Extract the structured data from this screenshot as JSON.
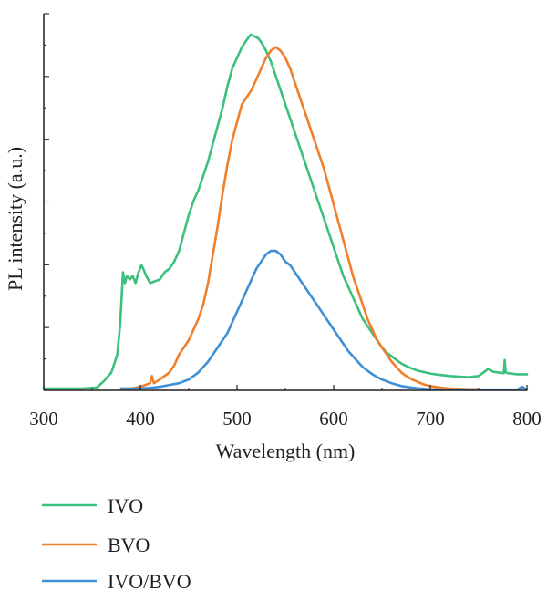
{
  "chart_data": {
    "type": "line",
    "title": "",
    "xlabel": "Wavelength (nm)",
    "ylabel": "PL intensity (a.u.)",
    "xlim": [
      300,
      800
    ],
    "ylim": [
      0,
      1.0
    ],
    "xticks": [
      300,
      400,
      500,
      600,
      700,
      800
    ],
    "xtick_labels": [
      "300",
      "400",
      "500",
      "600",
      "700",
      "800"
    ],
    "y_tick_labels_shown": false,
    "grid": false,
    "legend_position": "bottom-left, below plot",
    "series": [
      {
        "name": "IVO",
        "color": "#3dbf7e",
        "x": [
          300,
          340,
          355,
          362,
          370,
          376,
          379,
          380,
          382,
          384,
          386,
          389,
          392,
          395,
          398,
          401,
          403,
          406,
          410,
          415,
          420,
          425,
          430,
          435,
          440,
          445,
          450,
          455,
          460,
          465,
          470,
          475,
          480,
          485,
          490,
          495,
          500,
          505,
          510,
          514,
          518,
          522,
          526,
          530,
          535,
          540,
          545,
          550,
          555,
          560,
          565,
          570,
          575,
          580,
          585,
          590,
          595,
          600,
          605,
          610,
          615,
          620,
          625,
          630,
          635,
          640,
          645,
          650,
          655,
          660,
          665,
          670,
          675,
          680,
          685,
          690,
          695,
          700,
          710,
          720,
          730,
          740,
          750,
          755,
          760,
          765,
          770,
          776,
          777,
          778,
          780,
          790,
          800
        ],
        "y": [
          0.005,
          0.005,
          0.008,
          0.025,
          0.05,
          0.1,
          0.18,
          0.23,
          0.33,
          0.3,
          0.32,
          0.31,
          0.32,
          0.3,
          0.33,
          0.35,
          0.34,
          0.32,
          0.3,
          0.305,
          0.31,
          0.33,
          0.34,
          0.36,
          0.39,
          0.44,
          0.49,
          0.53,
          0.56,
          0.6,
          0.64,
          0.69,
          0.74,
          0.79,
          0.85,
          0.9,
          0.93,
          0.96,
          0.98,
          0.995,
          0.99,
          0.985,
          0.97,
          0.95,
          0.92,
          0.88,
          0.84,
          0.8,
          0.76,
          0.72,
          0.68,
          0.64,
          0.6,
          0.56,
          0.52,
          0.48,
          0.44,
          0.4,
          0.36,
          0.32,
          0.29,
          0.26,
          0.23,
          0.2,
          0.18,
          0.16,
          0.14,
          0.12,
          0.105,
          0.095,
          0.085,
          0.075,
          0.068,
          0.062,
          0.057,
          0.053,
          0.05,
          0.047,
          0.043,
          0.04,
          0.038,
          0.037,
          0.04,
          0.05,
          0.06,
          0.052,
          0.05,
          0.048,
          0.085,
          0.05,
          0.048,
          0.045,
          0.045
        ]
      },
      {
        "name": "BVO",
        "color": "#f07f2b",
        "x": [
          380,
          390,
          400,
          405,
          410,
          412,
          414,
          420,
          425,
          430,
          435,
          440,
          445,
          450,
          455,
          460,
          465,
          470,
          475,
          480,
          485,
          490,
          495,
          500,
          505,
          510,
          515,
          520,
          525,
          530,
          535,
          540,
          545,
          550,
          555,
          560,
          565,
          570,
          575,
          580,
          585,
          590,
          595,
          600,
          605,
          610,
          615,
          620,
          625,
          630,
          635,
          640,
          645,
          650,
          655,
          660,
          665,
          670,
          675,
          680,
          685,
          690,
          695,
          700,
          710,
          720,
          730,
          740,
          750
        ],
        "y": [
          0.005,
          0.005,
          0.01,
          0.015,
          0.02,
          0.04,
          0.02,
          0.03,
          0.04,
          0.05,
          0.07,
          0.1,
          0.12,
          0.14,
          0.17,
          0.2,
          0.24,
          0.3,
          0.38,
          0.46,
          0.55,
          0.63,
          0.7,
          0.75,
          0.8,
          0.82,
          0.84,
          0.87,
          0.9,
          0.93,
          0.95,
          0.96,
          0.95,
          0.93,
          0.9,
          0.86,
          0.82,
          0.78,
          0.74,
          0.7,
          0.66,
          0.62,
          0.57,
          0.52,
          0.47,
          0.42,
          0.37,
          0.32,
          0.28,
          0.24,
          0.2,
          0.17,
          0.14,
          0.12,
          0.1,
          0.08,
          0.065,
          0.05,
          0.04,
          0.032,
          0.026,
          0.02,
          0.015,
          0.012,
          0.008,
          0.005,
          0.004,
          0.003,
          0.003
        ]
      },
      {
        "name": "IVO/BVO",
        "color": "#3d8fd6",
        "x": [
          380,
          400,
          410,
          420,
          430,
          440,
          445,
          450,
          455,
          460,
          465,
          470,
          475,
          480,
          485,
          490,
          495,
          500,
          505,
          510,
          515,
          520,
          525,
          530,
          535,
          540,
          545,
          550,
          555,
          560,
          565,
          570,
          575,
          580,
          585,
          590,
          595,
          600,
          605,
          610,
          615,
          620,
          625,
          630,
          635,
          640,
          645,
          650,
          655,
          660,
          665,
          670,
          675,
          680,
          685,
          690,
          695,
          700,
          710,
          720,
          730,
          740,
          750,
          760,
          770,
          780,
          790,
          795,
          800
        ],
        "y": [
          0.005,
          0.005,
          0.007,
          0.01,
          0.015,
          0.02,
          0.025,
          0.03,
          0.04,
          0.05,
          0.065,
          0.08,
          0.1,
          0.12,
          0.14,
          0.16,
          0.19,
          0.22,
          0.25,
          0.28,
          0.31,
          0.34,
          0.36,
          0.38,
          0.39,
          0.39,
          0.38,
          0.36,
          0.35,
          0.33,
          0.31,
          0.29,
          0.27,
          0.25,
          0.23,
          0.21,
          0.19,
          0.17,
          0.15,
          0.13,
          0.11,
          0.095,
          0.08,
          0.065,
          0.055,
          0.045,
          0.037,
          0.03,
          0.025,
          0.02,
          0.016,
          0.012,
          0.01,
          0.008,
          0.006,
          0.005,
          0.004,
          0.003,
          0.002,
          0.002,
          0.002,
          0.002,
          0.002,
          0.002,
          0.002,
          0.002,
          0.002,
          0.01,
          0.002
        ]
      }
    ]
  }
}
